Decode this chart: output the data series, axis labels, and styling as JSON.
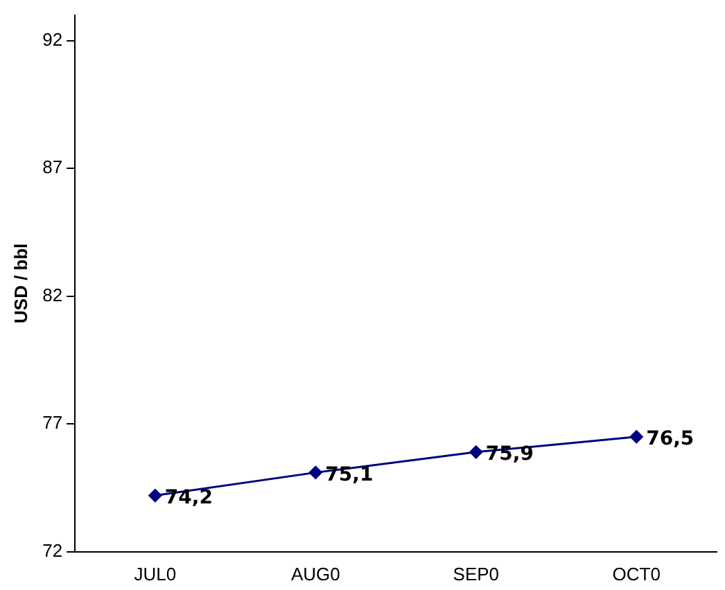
{
  "chart_data": {
    "type": "line",
    "ylabel": "USD / bbl",
    "categories": [
      "JUL0",
      "AUG0",
      "SEP0",
      "OCT0"
    ],
    "series": [
      {
        "color": "#000080",
        "values": [
          74.2,
          75.1,
          75.9,
          76.5
        ],
        "value_labels": [
          "74,2",
          "75,1",
          "75,9",
          "76,5"
        ]
      }
    ],
    "ylim": [
      72,
      93
    ],
    "yticks": [
      72,
      77,
      82,
      87,
      92
    ],
    "grid": false,
    "legend": false,
    "marker": "diamond",
    "line_style": "solid"
  }
}
